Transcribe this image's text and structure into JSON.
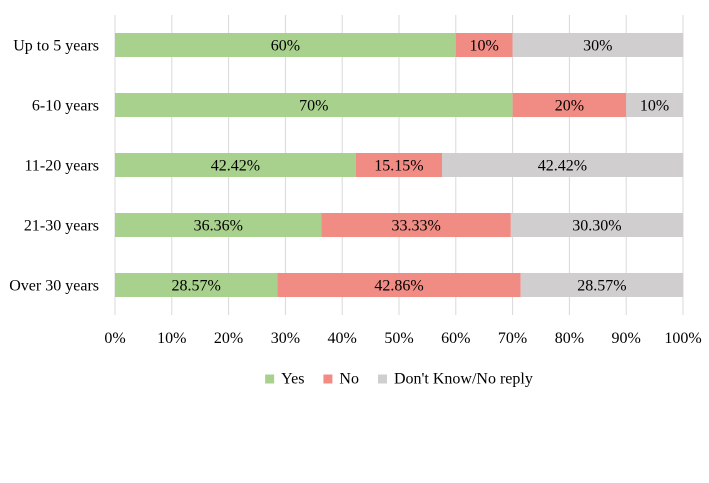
{
  "chart_data": {
    "type": "bar",
    "orientation": "horizontal",
    "stacked": true,
    "categories": [
      "Up to 5 years",
      "6-10 years",
      "11-20 years",
      "21-30 years",
      "Over 30 years"
    ],
    "series": [
      {
        "name": "Yes",
        "color": "#a9d18e",
        "values": [
          60,
          70,
          42.42,
          36.36,
          28.57
        ],
        "labels": [
          "60%",
          "70%",
          "42.42%",
          "36.36%",
          "28.57%"
        ]
      },
      {
        "name": "No",
        "color": "#f08c84",
        "values": [
          10,
          20,
          15.15,
          33.33,
          42.86
        ],
        "labels": [
          "10%",
          "20%",
          "15.15%",
          "33.33%",
          "42.86%"
        ]
      },
      {
        "name": "Don't Know/No reply",
        "color": "#d0cece",
        "values": [
          30,
          10,
          42.42,
          30.3,
          28.57
        ],
        "labels": [
          "30%",
          "10%",
          "42.42%",
          "30.30%",
          "28.57%"
        ]
      }
    ],
    "xlim": [
      0,
      100
    ],
    "xticks": [
      "0%",
      "10%",
      "20%",
      "30%",
      "40%",
      "50%",
      "60%",
      "70%",
      "80%",
      "90%",
      "100%"
    ],
    "grid": "vertical",
    "legend": "bottom",
    "gridline_color": "#d9d9d9",
    "text_color": "#000000"
  }
}
